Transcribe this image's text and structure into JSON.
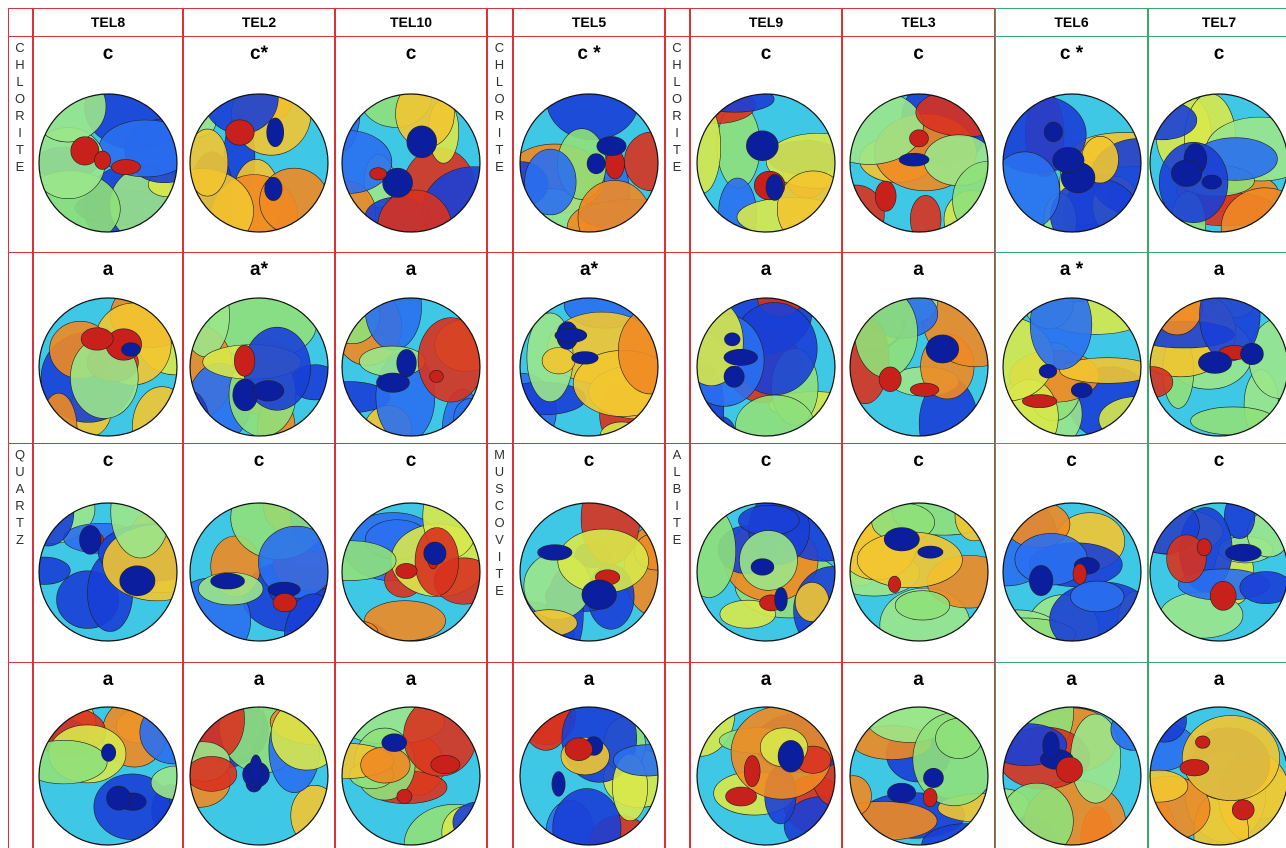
{
  "header": {
    "columns": [
      "TEL8",
      "TEL2",
      "TEL10",
      "TEL5",
      "TEL9",
      "TEL3",
      "TEL6",
      "TEL7"
    ]
  },
  "side_labels": [
    [
      "CHLORITE",
      "QUARTZ"
    ],
    [
      "CHLORITE",
      "MUSCOVITE"
    ],
    [
      "CHLORITE",
      "ALBITE"
    ]
  ],
  "rows": [
    [
      "c",
      "c*",
      "c",
      "c *",
      "c",
      "c",
      "c *",
      "c"
    ],
    [
      "a",
      "a*",
      "a",
      "a*",
      "a",
      "a",
      "a *",
      "a"
    ],
    [
      "c",
      "c",
      "c",
      "c",
      "c",
      "c",
      "c",
      "c"
    ],
    [
      "a",
      "a",
      "a",
      "a",
      "a",
      "a",
      "a",
      "a"
    ]
  ]
}
